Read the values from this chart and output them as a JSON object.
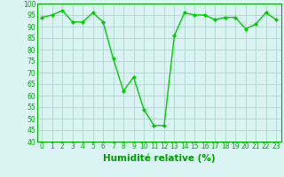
{
  "x": [
    0,
    1,
    2,
    3,
    4,
    5,
    6,
    7,
    8,
    9,
    10,
    11,
    12,
    13,
    14,
    15,
    16,
    17,
    18,
    19,
    20,
    21,
    22,
    23
  ],
  "y": [
    94,
    95,
    97,
    92,
    92,
    96,
    92,
    76,
    62,
    68,
    54,
    47,
    47,
    86,
    96,
    95,
    95,
    93,
    94,
    94,
    89,
    91,
    96,
    93
  ],
  "line_color": "#00cc00",
  "marker": "D",
  "marker_size": 2.0,
  "bg_color": "#daf4f4",
  "grid_color": "#aacccc",
  "axis_color": "#00aa00",
  "xlabel": "Humidité relative (%)",
  "xlabel_color": "#009900",
  "ylim": [
    40,
    100
  ],
  "xlim": [
    -0.5,
    23.5
  ],
  "yticks": [
    40,
    45,
    50,
    55,
    60,
    65,
    70,
    75,
    80,
    85,
    90,
    95,
    100
  ],
  "xticks": [
    0,
    1,
    2,
    3,
    4,
    5,
    6,
    7,
    8,
    9,
    10,
    11,
    12,
    13,
    14,
    15,
    16,
    17,
    18,
    19,
    20,
    21,
    22,
    23
  ],
  "tick_label_fontsize": 5.5,
  "xlabel_fontsize": 7.5,
  "linewidth": 1.0
}
